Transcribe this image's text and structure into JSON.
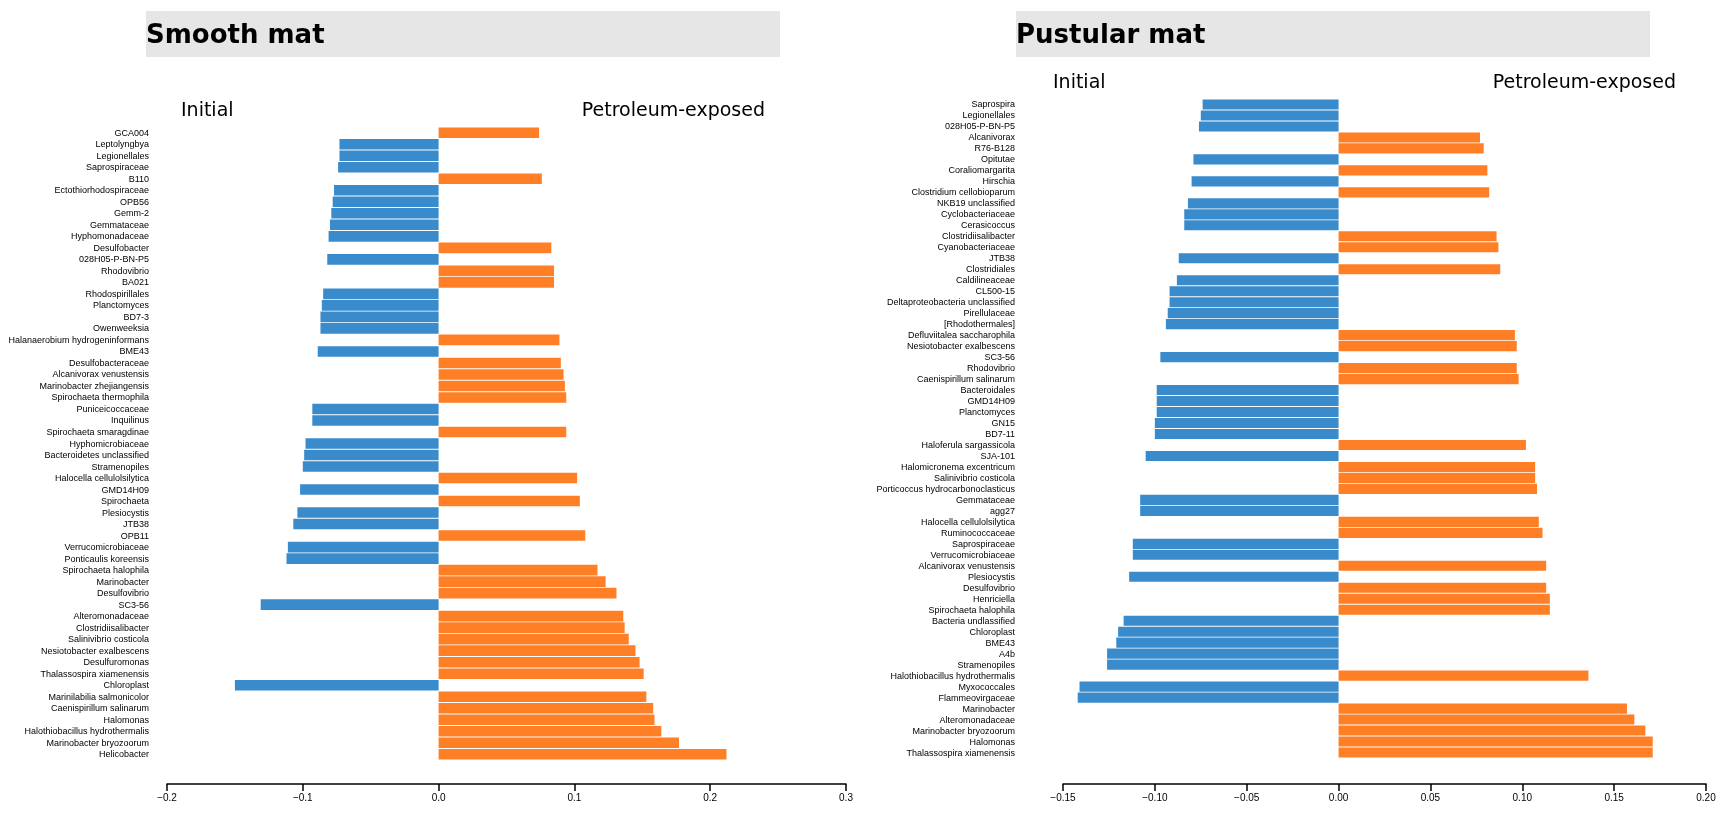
{
  "chart_data": [
    {
      "type": "bar",
      "orientation": "horizontal",
      "title": "Smooth mat",
      "annotations": [
        "Initial",
        "Petroleum-exposed"
      ],
      "categories": [
        "GCA004",
        "Leptolyngbya",
        "Legionellales",
        "Saprospiraceae",
        "B110",
        "Ectothiorhodospiraceae",
        "OPB56",
        "Gemm-2",
        "Gemmataceae",
        "Hyphomonadaceae",
        "Desulfobacter",
        "028H05-P-BN-P5",
        "Rhodovibrio",
        "BA021",
        "Rhodospirillales",
        "Planctomyces",
        "BD7-3",
        "Owenweeksia",
        "Halanaerobium hydrogeninformans",
        "BME43",
        "Desulfobacteraceae",
        "Alcanivorax venustensis",
        "Marinobacter zhejiangensis",
        "Spirochaeta thermophila",
        "Puniceicoccaceae",
        "Inquilinus",
        "Spirochaeta smaragdinae",
        "Hyphomicrobiaceae",
        "Bacteroidetes unclassified",
        "Stramenopiles",
        "Halocella cellulolsilytica",
        "GMD14H09",
        "Spirochaeta",
        "Plesiocystis",
        "JTB38",
        "OPB11",
        "Verrucomicrobiaceae",
        "Ponticaulis koreensis",
        "Spirochaeta halophila",
        "Marinobacter",
        "Desulfovibrio",
        "SC3-56",
        "Alteromonadaceae",
        "Clostridiisalibacter",
        "Salinivibrio costicola",
        "Nesiotobacter exalbescens",
        "Desulfuromonas",
        "Thalassospira xiamenensis",
        "Chloroplast",
        "Marinilabilia salmonicolor",
        "Caenispirillum salinarum",
        "Halomonas",
        "Halothiobacillus hydrothermalis",
        "Marinobacter bryozoorum",
        "Helicobacter"
      ],
      "values": [
        0.074,
        -0.073,
        -0.073,
        -0.074,
        0.076,
        -0.077,
        -0.078,
        -0.079,
        -0.08,
        -0.081,
        0.083,
        -0.082,
        0.085,
        0.085,
        -0.085,
        -0.086,
        -0.087,
        -0.087,
        0.089,
        -0.089,
        0.09,
        0.092,
        0.093,
        0.094,
        -0.093,
        -0.093,
        0.094,
        -0.098,
        -0.099,
        -0.1,
        0.102,
        -0.102,
        0.104,
        -0.104,
        -0.107,
        0.108,
        -0.111,
        -0.112,
        0.117,
        0.123,
        0.131,
        -0.131,
        0.136,
        0.137,
        0.14,
        0.145,
        0.148,
        0.151,
        -0.15,
        0.153,
        0.158,
        0.159,
        0.164,
        0.177,
        0.212
      ],
      "colors": [
        "#ff7f27",
        "#3a8bcb",
        "#3a8bcb",
        "#3a8bcb",
        "#ff7f27",
        "#3a8bcb",
        "#3a8bcb",
        "#3a8bcb",
        "#3a8bcb",
        "#3a8bcb",
        "#ff7f27",
        "#3a8bcb",
        "#ff7f27",
        "#ff7f27",
        "#3a8bcb",
        "#3a8bcb",
        "#3a8bcb",
        "#3a8bcb",
        "#ff7f27",
        "#3a8bcb",
        "#ff7f27",
        "#ff7f27",
        "#ff7f27",
        "#ff7f27",
        "#3a8bcb",
        "#3a8bcb",
        "#ff7f27",
        "#3a8bcb",
        "#3a8bcb",
        "#3a8bcb",
        "#ff7f27",
        "#3a8bcb",
        "#ff7f27",
        "#3a8bcb",
        "#3a8bcb",
        "#ff7f27",
        "#3a8bcb",
        "#3a8bcb",
        "#ff7f27",
        "#ff7f27",
        "#ff7f27",
        "#3a8bcb",
        "#ff7f27",
        "#ff7f27",
        "#ff7f27",
        "#ff7f27",
        "#ff7f27",
        "#ff7f27",
        "#3a8bcb",
        "#ff7f27",
        "#ff7f27",
        "#ff7f27",
        "#ff7f27",
        "#ff7f27",
        "#ff7f27"
      ],
      "xlim": [
        -0.2,
        0.3
      ],
      "xticks": [
        {
          "value": -0.2,
          "label": "−0.2"
        },
        {
          "value": -0.1,
          "label": "−0.1"
        },
        {
          "value": 0,
          "label": "0.0"
        },
        {
          "value": 0.1,
          "label": "0.1"
        },
        {
          "value": 0.2,
          "label": "0.2"
        },
        {
          "value": 0.3,
          "label": "0.3"
        }
      ]
    },
    {
      "type": "bar",
      "orientation": "horizontal",
      "title": "Pustular mat",
      "annotations": [
        "Initial",
        "Petroleum-exposed"
      ],
      "categories": [
        "Saprospira",
        "Legionellales",
        "028H05-P-BN-P5",
        "Alcanivorax",
        "R76-B128",
        "Opitutae",
        "Coraliomargarita",
        "Hirschia",
        "Clostridium cellobioparum",
        "NKB19 unclassified",
        "Cyclobacteriaceae",
        "Cerasicoccus",
        "Clostridiisalibacter",
        "Cyanobacteriaceae",
        "JTB38",
        "Clostridiales",
        "Caldilineaceae",
        "CL500-15",
        "Deltaproteobacteria unclassified",
        "Pirellulaceae",
        "[Rhodothermales]",
        "Defluviitalea saccharophila",
        "Nesiotobacter exalbescens",
        "SC3-56",
        "Rhodovibrio",
        "Caenispirillum salinarum",
        "Bacteroidales",
        "GMD14H09",
        "Planctomyces",
        "GN15",
        "BD7-11",
        "Haloferula sargassicola",
        "SJA-101",
        "Halomicronema excentricum",
        "Salinivibrio costicola",
        "Porticoccus hydrocarbonoclasticus",
        "Gemmataceae",
        "agg27",
        "Halocella cellulolsilytica",
        "Ruminococcaceae",
        "Saprospiraceae",
        "Verrucomicrobiaceae",
        "Alcanivorax venustensis",
        "Plesiocystis",
        "Desulfovibrio",
        "Henriciella",
        "Spirochaeta halophila",
        "Bacteria undlassified",
        "Chloroplast",
        "BME43",
        "A4b",
        "Stramenopiles",
        "Halothiobacillus hydrothermalis",
        "Myxococcales",
        "Flammeovirgaceae",
        "Marinobacter",
        "Alteromonadaceae",
        "Marinobacter bryozoorum",
        "Halomonas",
        "Thalassospira xiamenensis"
      ],
      "values": [
        -0.074,
        -0.075,
        -0.076,
        0.077,
        0.079,
        -0.079,
        0.081,
        -0.08,
        0.082,
        -0.082,
        -0.084,
        -0.084,
        0.086,
        0.087,
        -0.087,
        0.088,
        -0.088,
        -0.092,
        -0.092,
        -0.093,
        -0.094,
        0.096,
        0.097,
        -0.097,
        0.097,
        0.098,
        -0.099,
        -0.099,
        -0.099,
        -0.1,
        -0.1,
        0.102,
        -0.105,
        0.107,
        0.107,
        0.108,
        -0.108,
        -0.108,
        0.109,
        0.111,
        -0.112,
        -0.112,
        0.113,
        -0.114,
        0.113,
        0.115,
        0.115,
        -0.117,
        -0.12,
        -0.121,
        -0.126,
        -0.126,
        0.136,
        -0.141,
        -0.142,
        0.157,
        0.161,
        0.167,
        0.171,
        0.171
      ],
      "colors": [
        "#3a8bcb",
        "#3a8bcb",
        "#3a8bcb",
        "#ff7f27",
        "#ff7f27",
        "#3a8bcb",
        "#ff7f27",
        "#3a8bcb",
        "#ff7f27",
        "#3a8bcb",
        "#3a8bcb",
        "#3a8bcb",
        "#ff7f27",
        "#ff7f27",
        "#3a8bcb",
        "#ff7f27",
        "#3a8bcb",
        "#3a8bcb",
        "#3a8bcb",
        "#3a8bcb",
        "#3a8bcb",
        "#ff7f27",
        "#ff7f27",
        "#3a8bcb",
        "#ff7f27",
        "#ff7f27",
        "#3a8bcb",
        "#3a8bcb",
        "#3a8bcb",
        "#3a8bcb",
        "#3a8bcb",
        "#ff7f27",
        "#3a8bcb",
        "#ff7f27",
        "#ff7f27",
        "#ff7f27",
        "#3a8bcb",
        "#3a8bcb",
        "#ff7f27",
        "#ff7f27",
        "#3a8bcb",
        "#3a8bcb",
        "#ff7f27",
        "#3a8bcb",
        "#ff7f27",
        "#ff7f27",
        "#ff7f27",
        "#3a8bcb",
        "#3a8bcb",
        "#3a8bcb",
        "#3a8bcb",
        "#3a8bcb",
        "#ff7f27",
        "#3a8bcb",
        "#3a8bcb",
        "#ff7f27",
        "#ff7f27",
        "#ff7f27",
        "#ff7f27",
        "#ff7f27"
      ],
      "xlim": [
        -0.15,
        0.2
      ],
      "xticks": [
        {
          "value": -0.15,
          "label": "−0.15"
        },
        {
          "value": -0.1,
          "label": "−0.10"
        },
        {
          "value": -0.05,
          "label": "−0.05"
        },
        {
          "value": 0,
          "label": "0.00"
        },
        {
          "value": 0.05,
          "label": "0.05"
        },
        {
          "value": 0.1,
          "label": "0.10"
        },
        {
          "value": 0.15,
          "label": "0.15"
        },
        {
          "value": 0.2,
          "label": "0.20"
        }
      ]
    }
  ]
}
